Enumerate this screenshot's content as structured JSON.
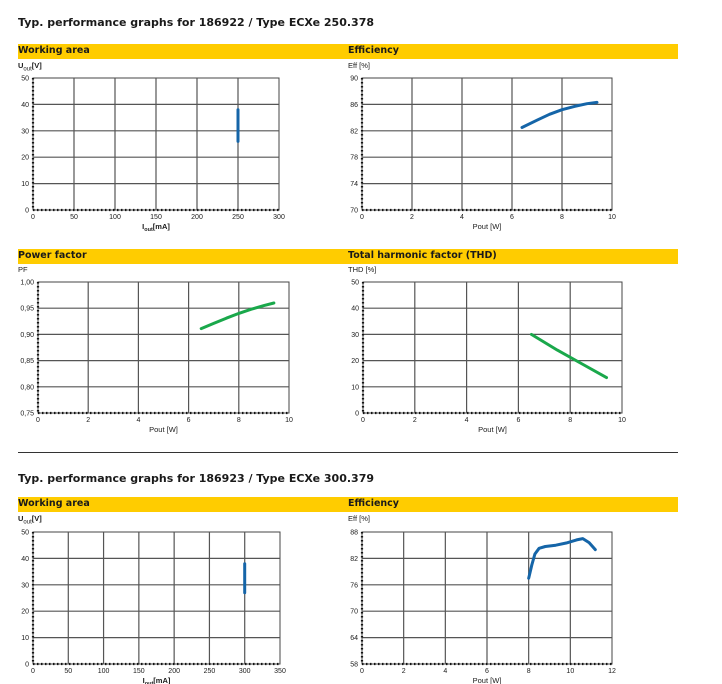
{
  "sections": [
    {
      "title": "Typ. performance graphs for 186922 / Type ECXe 250.378"
    },
    {
      "title": "Typ. performance graphs for 186923 / Type ECXe 300.379"
    }
  ],
  "chart_data": [
    {
      "type": "line",
      "title": "Working area",
      "ylabel": "U_out [V]",
      "ylabel_main": "U",
      "ylabel_sub": "out",
      "ylabel_unit": "[V]",
      "xlabel": "I_out [mA]",
      "xlabel_main": "I",
      "xlabel_sub": "out",
      "xlabel_unit": "[mA]",
      "xlim": [
        0,
        300
      ],
      "ylim": [
        0,
        50
      ],
      "xticks": [
        0,
        50,
        100,
        150,
        200,
        250,
        300
      ],
      "yticks": [
        0,
        10,
        20,
        30,
        40,
        50
      ],
      "grid": true,
      "color": "#1565a8",
      "series": [
        {
          "x": [
            250,
            250
          ],
          "y": [
            26,
            38
          ]
        }
      ]
    },
    {
      "type": "line",
      "title": "Efficiency",
      "ylabel": "Eff [%]",
      "xlabel": "Pout [W]",
      "xlim": [
        0,
        10
      ],
      "ylim": [
        70,
        90
      ],
      "xticks": [
        0,
        2,
        4,
        6,
        8,
        10
      ],
      "yticks": [
        70,
        74,
        78,
        82,
        86,
        90
      ],
      "grid": true,
      "color": "#1565a8",
      "series": [
        {
          "x": [
            6.4,
            7.0,
            7.5,
            8.0,
            8.5,
            9.0,
            9.4
          ],
          "y": [
            82.5,
            83.6,
            84.5,
            85.2,
            85.7,
            86.1,
            86.3
          ]
        }
      ]
    },
    {
      "type": "line",
      "title": "Power factor",
      "ylabel": "PF",
      "xlabel": "Pout [W]",
      "xlim": [
        0,
        10
      ],
      "ylim": [
        0.75,
        1.0
      ],
      "xticks": [
        0,
        2,
        4,
        6,
        8,
        10
      ],
      "yticks": [
        "0,75",
        "0,80",
        "0,85",
        "0,90",
        "0,95",
        "1,00"
      ],
      "ytick_values": [
        0.75,
        0.8,
        0.85,
        0.9,
        0.95,
        1.0
      ],
      "grid": true,
      "color": "#1aa84b",
      "series": [
        {
          "x": [
            6.5,
            7.0,
            7.5,
            8.0,
            8.5,
            9.0,
            9.4
          ],
          "y": [
            0.911,
            0.921,
            0.931,
            0.94,
            0.948,
            0.955,
            0.96
          ]
        }
      ]
    },
    {
      "type": "line",
      "title": "Total harmonic factor (THD)",
      "ylabel": "THD [%]",
      "xlabel": "Pout [W]",
      "xlim": [
        0,
        10
      ],
      "ylim": [
        0,
        50
      ],
      "xticks": [
        0,
        2,
        4,
        6,
        8,
        10
      ],
      "yticks": [
        0,
        10,
        20,
        30,
        40,
        50
      ],
      "grid": true,
      "color": "#1aa84b",
      "series": [
        {
          "x": [
            6.5,
            7.5,
            8.5,
            9.4
          ],
          "y": [
            30,
            24,
            18.5,
            13.5
          ]
        }
      ]
    },
    {
      "type": "line",
      "title": "Working area",
      "ylabel": "U_out [V]",
      "ylabel_main": "U",
      "ylabel_sub": "out",
      "ylabel_unit": "[V]",
      "xlabel": "I_out [mA]",
      "xlabel_main": "I",
      "xlabel_sub": "out",
      "xlabel_unit": "[mA]",
      "xlim": [
        0,
        350
      ],
      "ylim": [
        0,
        50
      ],
      "xticks": [
        0,
        50,
        100,
        150,
        200,
        250,
        300,
        350
      ],
      "yticks": [
        0,
        10,
        20,
        30,
        40,
        50
      ],
      "grid": true,
      "color": "#1565a8",
      "series": [
        {
          "x": [
            300,
            300
          ],
          "y": [
            27,
            38
          ]
        }
      ]
    },
    {
      "type": "line",
      "title": "Efficiency",
      "ylabel": "Eff [%]",
      "xlabel": "Pout [W]",
      "xlim": [
        0,
        12
      ],
      "ylim": [
        58,
        88
      ],
      "xticks": [
        0,
        2,
        4,
        6,
        8,
        10,
        12
      ],
      "yticks": [
        58,
        64,
        70,
        76,
        82,
        88
      ],
      "grid": true,
      "color": "#1565a8",
      "series": [
        {
          "x": [
            8.0,
            8.15,
            8.3,
            8.5,
            8.8,
            9.3,
            9.8,
            10.3,
            10.6,
            10.9,
            11.2
          ],
          "y": [
            77.5,
            80.5,
            83.0,
            84.3,
            84.7,
            85.0,
            85.5,
            86.2,
            86.5,
            85.6,
            84.0
          ]
        }
      ]
    }
  ]
}
